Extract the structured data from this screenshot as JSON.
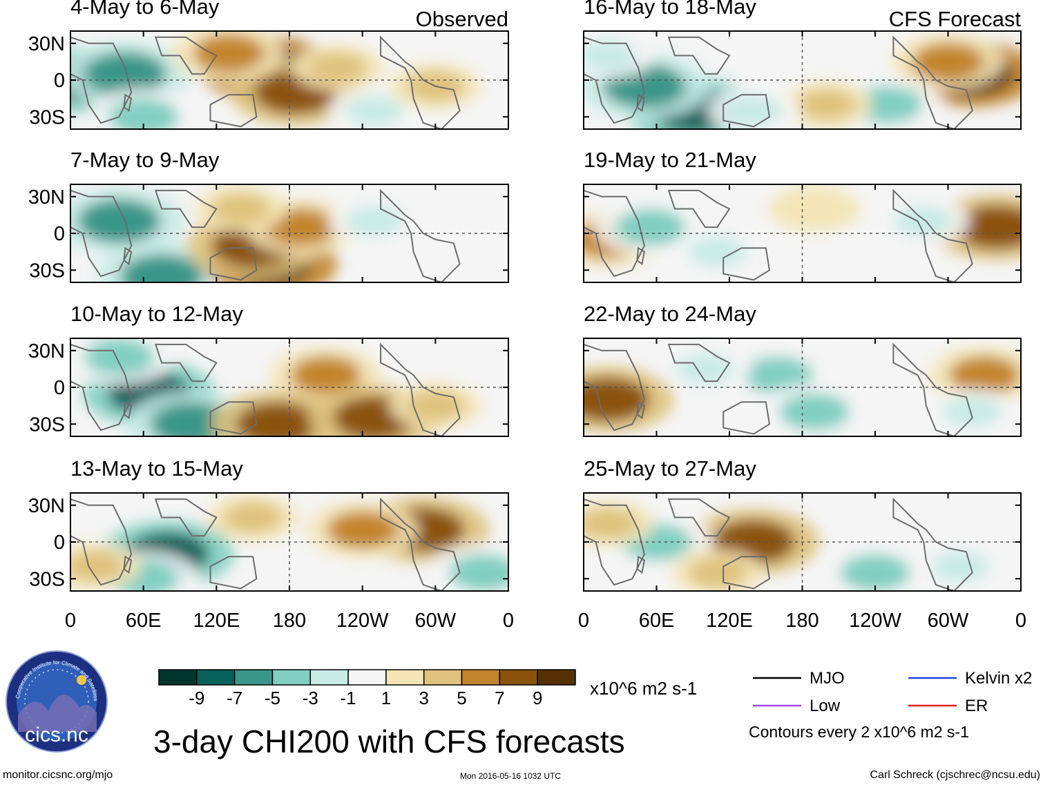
{
  "chart_data": {
    "type": "heatmap",
    "title": "3-day CHI200 with CFS forecasts",
    "left_header": "Observed",
    "right_header": "CFS Forecast",
    "panels": [
      {
        "label": "4-May to 6-May",
        "group": "Observed",
        "features": [
          {
            "lon": 15,
            "lat": 0,
            "value": -9
          },
          {
            "lon": 45,
            "lat": 5,
            "value": -7
          },
          {
            "lon": 160,
            "lat": 10,
            "value": 9
          },
          {
            "lon": 185,
            "lat": -10,
            "value": 7
          },
          {
            "lon": 130,
            "lat": 22,
            "value": 5
          },
          {
            "lon": 220,
            "lat": 10,
            "value": 3
          },
          {
            "lon": 60,
            "lat": -30,
            "value": -5
          },
          {
            "lon": 250,
            "lat": -25,
            "value": -3
          },
          {
            "lon": 300,
            "lat": -5,
            "value": 3
          }
        ]
      },
      {
        "label": "7-May to 9-May",
        "group": "Observed",
        "features": [
          {
            "lon": 40,
            "lat": 10,
            "value": -7
          },
          {
            "lon": 75,
            "lat": -35,
            "value": -7
          },
          {
            "lon": 165,
            "lat": -25,
            "value": 9
          },
          {
            "lon": 150,
            "lat": -10,
            "value": 7
          },
          {
            "lon": 190,
            "lat": 5,
            "value": 5
          },
          {
            "lon": 140,
            "lat": 20,
            "value": 3
          },
          {
            "lon": 250,
            "lat": 10,
            "value": -3
          }
        ]
      },
      {
        "label": "10-May to 12-May",
        "group": "Observed",
        "features": [
          {
            "lon": 65,
            "lat": -5,
            "value": -9
          },
          {
            "lon": 100,
            "lat": -30,
            "value": -7
          },
          {
            "lon": 40,
            "lat": 25,
            "value": -5
          },
          {
            "lon": 210,
            "lat": 10,
            "value": 5
          },
          {
            "lon": 170,
            "lat": -30,
            "value": 7
          },
          {
            "lon": 250,
            "lat": -25,
            "value": 7
          },
          {
            "lon": 300,
            "lat": -15,
            "value": 3
          }
        ]
      },
      {
        "label": "13-May to 15-May",
        "group": "Observed",
        "features": [
          {
            "lon": 80,
            "lat": -10,
            "value": -9
          },
          {
            "lon": 60,
            "lat": -30,
            "value": -5
          },
          {
            "lon": 290,
            "lat": 10,
            "value": 7
          },
          {
            "lon": 240,
            "lat": 10,
            "value": 5
          },
          {
            "lon": 150,
            "lat": 20,
            "value": 3
          },
          {
            "lon": 340,
            "lat": -25,
            "value": -5
          },
          {
            "lon": 20,
            "lat": -20,
            "value": 3
          }
        ]
      },
      {
        "label": "16-May to 18-May",
        "group": "CFS Forecast",
        "features": [
          {
            "lon": 90,
            "lat": -25,
            "value": -9
          },
          {
            "lon": 50,
            "lat": -5,
            "value": -7
          },
          {
            "lon": 20,
            "lat": 20,
            "value": -3
          },
          {
            "lon": 320,
            "lat": 5,
            "value": 9
          },
          {
            "lon": 300,
            "lat": 15,
            "value": 5
          },
          {
            "lon": 250,
            "lat": -20,
            "value": -5
          },
          {
            "lon": 200,
            "lat": -20,
            "value": 3
          },
          {
            "lon": 140,
            "lat": -25,
            "value": -3
          }
        ]
      },
      {
        "label": "19-May to 21-May",
        "group": "CFS Forecast",
        "features": [
          {
            "lon": 20,
            "lat": -5,
            "value": 5
          },
          {
            "lon": 55,
            "lat": 5,
            "value": -5
          },
          {
            "lon": 110,
            "lat": -15,
            "value": -3
          },
          {
            "lon": 340,
            "lat": 5,
            "value": 7
          },
          {
            "lon": 280,
            "lat": 10,
            "value": -3
          },
          {
            "lon": 190,
            "lat": 20,
            "value": 1
          }
        ]
      },
      {
        "label": "22-May to 24-May",
        "group": "CFS Forecast",
        "features": [
          {
            "lon": 20,
            "lat": -10,
            "value": 7
          },
          {
            "lon": 160,
            "lat": 10,
            "value": -5
          },
          {
            "lon": 190,
            "lat": -20,
            "value": -5
          },
          {
            "lon": 100,
            "lat": 15,
            "value": -3
          },
          {
            "lon": 330,
            "lat": 10,
            "value": 5
          },
          {
            "lon": 320,
            "lat": -20,
            "value": -3
          }
        ]
      },
      {
        "label": "25-May to 27-May",
        "group": "CFS Forecast",
        "features": [
          {
            "lon": 140,
            "lat": 0,
            "value": 7
          },
          {
            "lon": 60,
            "lat": 0,
            "value": -5
          },
          {
            "lon": 240,
            "lat": -25,
            "value": -5
          },
          {
            "lon": 310,
            "lat": -20,
            "value": -3
          },
          {
            "lon": 20,
            "lat": 15,
            "value": 3
          },
          {
            "lon": 110,
            "lat": -25,
            "value": 3
          }
        ]
      }
    ],
    "yticks": [
      "30N",
      "0",
      "30S"
    ],
    "xticks": [
      "0",
      "60E",
      "120E",
      "180",
      "120W",
      "60W",
      "0"
    ],
    "colorbar": {
      "labels": [
        "-9",
        "-7",
        "-5",
        "-3",
        "-1",
        "1",
        "3",
        "5",
        "7",
        "9"
      ],
      "colors": [
        "#00362c",
        "#06615a",
        "#3a968a",
        "#81cfc2",
        "#c8ebe4",
        "#f5f5f5",
        "#f4e4b6",
        "#dfc27d",
        "#c3852c",
        "#8b520c",
        "#553005"
      ],
      "units": "x10^6 m2 s-1"
    },
    "legend": [
      {
        "label": "MJO",
        "color": "#000000"
      },
      {
        "label": "Kelvin x2",
        "color": "#1f3fd9"
      },
      {
        "label": "Low",
        "color": "#a24fe0"
      },
      {
        "label": "ER",
        "color": "#e22020"
      }
    ],
    "contour_note": "Contours every 2 x10^6 m2 s-1"
  },
  "footer": {
    "url": "monitor.cicsnc.org/mjo",
    "timestamp": "Mon 2016-05-16 1032 UTC",
    "credit": "Carl Schreck (cjschrec@ncsu.edu)"
  },
  "logo": {
    "name": "cics.nc",
    "ring_text": "Cooperative Institute for Climate and Satellites"
  }
}
